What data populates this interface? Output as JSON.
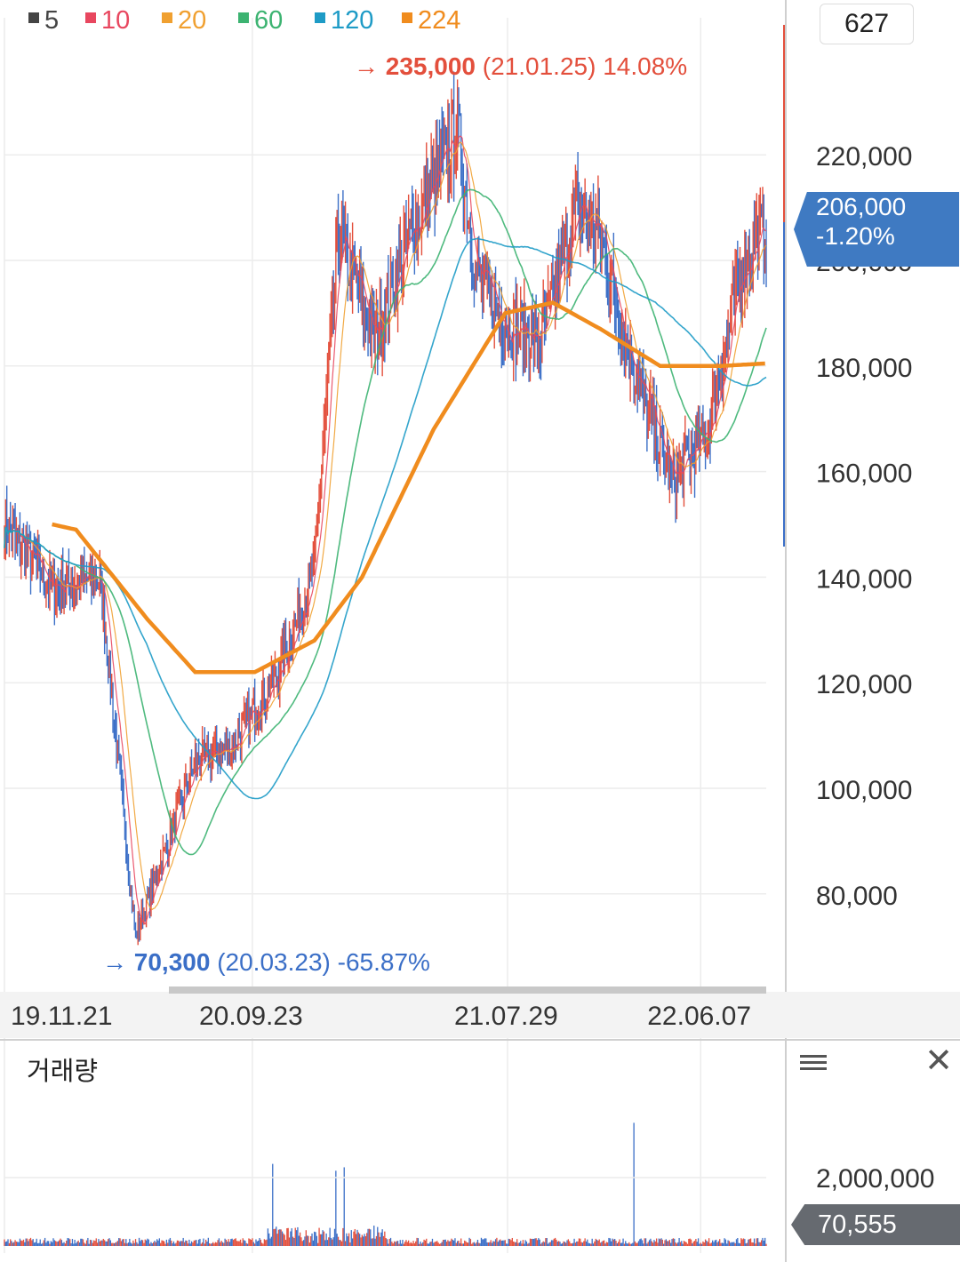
{
  "legend": [
    {
      "label": "5",
      "color": "#444444"
    },
    {
      "label": "10",
      "color": "#e8475f"
    },
    {
      "label": "20",
      "color": "#f0a030"
    },
    {
      "label": "60",
      "color": "#3cb371"
    },
    {
      "label": "120",
      "color": "#1e9bc6"
    },
    {
      "label": "224",
      "color": "#f08c1e"
    }
  ],
  "count_badge": "627",
  "current_price": {
    "value": "206,000",
    "change": "-1.20%"
  },
  "high_annotation": {
    "arrow": "→",
    "value": "235,000",
    "date": "(21.01.25)",
    "pct": "14.08%"
  },
  "low_annotation": {
    "arrow": "→",
    "value": "70,300",
    "date": "(20.03.23)",
    "pct": "-65.87%"
  },
  "volume_panel": {
    "title": "거래량",
    "current": "70,555"
  },
  "colors": {
    "up": "#e34f3c",
    "down": "#3b6fc7",
    "grid": "#ececec",
    "price_box": "#3f7ac2"
  },
  "chart_data": [
    {
      "type": "line",
      "ylim": [
        60000,
        250000
      ],
      "y_ticks": [
        80000,
        100000,
        120000,
        140000,
        160000,
        180000,
        200000,
        220000
      ],
      "y_tick_labels": [
        "80,000",
        "100,000",
        "120,000",
        "140,000",
        "160,000",
        "180,000",
        "200,000",
        "220,000"
      ],
      "x_ticks": [
        "19.11.21",
        "20.09.23",
        "21.07.29",
        "22.06.07"
      ],
      "x_tick_index": [
        0,
        208,
        422,
        584
      ],
      "n_bars": 640,
      "grid": true,
      "series": [
        {
          "name": "5",
          "x": [
            0,
            40,
            80,
            110,
            160,
            190,
            230,
            260,
            280,
            310,
            340,
            380,
            395,
            420,
            450,
            480,
            500,
            520,
            560,
            590,
            620,
            635
          ],
          "values": [
            150000,
            138000,
            140000,
            72000,
            105000,
            108000,
            122000,
            142000,
            205000,
            185000,
            205000,
            225000,
            198000,
            188000,
            185000,
            210000,
            205000,
            185000,
            158000,
            168000,
            200000,
            206000
          ]
        },
        {
          "name": "224",
          "x": [
            40,
            60,
            120,
            160,
            210,
            260,
            300,
            360,
            420,
            460,
            500,
            550,
            600,
            640
          ],
          "values": [
            150000,
            149000,
            132000,
            122000,
            122000,
            128000,
            140000,
            168000,
            190000,
            192000,
            187000,
            180000,
            180000,
            180500
          ]
        }
      ]
    },
    {
      "type": "bar",
      "title": "거래량",
      "y_ticks": [
        2000000
      ],
      "y_tick_labels": [
        "2,000,000"
      ],
      "spikes": [
        {
          "index": 225,
          "value": 2400000
        },
        {
          "index": 278,
          "value": 2200000
        },
        {
          "index": 285,
          "value": 2300000
        },
        {
          "index": 528,
          "value": 3600000
        }
      ]
    }
  ]
}
